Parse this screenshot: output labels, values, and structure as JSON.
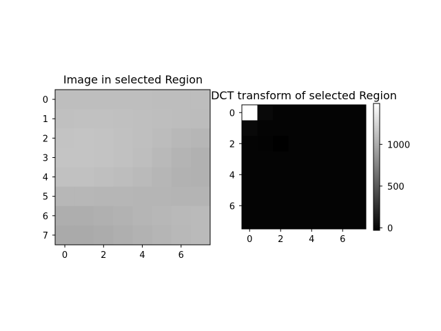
{
  "chart_data": [
    {
      "type": "heatmap",
      "title": "Image in selected Region",
      "colormap": "gray",
      "x_ticks": [
        0,
        2,
        4,
        6
      ],
      "y_ticks": [
        0,
        1,
        2,
        3,
        4,
        5,
        6,
        7
      ],
      "value_range": [
        0,
        255
      ],
      "values": [
        [
          190,
          190,
          190,
          190,
          190,
          189,
          189,
          189
        ],
        [
          192,
          193,
          193,
          192,
          191,
          190,
          189,
          188
        ],
        [
          195,
          196,
          195,
          193,
          191,
          188,
          184,
          182
        ],
        [
          196,
          196,
          195,
          193,
          190,
          185,
          180,
          177
        ],
        [
          193,
          193,
          191,
          189,
          186,
          182,
          178,
          177
        ],
        [
          183,
          183,
          182,
          182,
          181,
          181,
          180,
          180
        ],
        [
          174,
          174,
          176,
          178,
          181,
          183,
          185,
          186
        ],
        [
          170,
          170,
          172,
          175,
          178,
          181,
          184,
          186
        ]
      ]
    },
    {
      "type": "heatmap",
      "title": "DCT transform of selected Region",
      "colormap": "gray",
      "x_ticks": [
        0,
        2,
        4,
        6
      ],
      "y_ticks": [
        0,
        2,
        4,
        6
      ],
      "colorbar": {
        "ticks": [
          0,
          500,
          1000
        ],
        "range": [
          -30,
          1490
        ]
      },
      "values": [
        [
          1490,
          22,
          -4,
          -6,
          -7,
          -7,
          -7,
          -7
        ],
        [
          25,
          -8,
          -6,
          -5,
          -6,
          -6,
          -6,
          -6
        ],
        [
          -4,
          -12,
          -30,
          -8,
          -6,
          -6,
          -6,
          -6
        ],
        [
          -6,
          -7,
          -8,
          -6,
          -6,
          -6,
          -6,
          -6
        ],
        [
          -6,
          -6,
          -6,
          -6,
          -6,
          -6,
          -6,
          -6
        ],
        [
          -6,
          -6,
          -6,
          -6,
          -6,
          -6,
          -6,
          -6
        ],
        [
          -6,
          -6,
          -6,
          -6,
          -6,
          -6,
          -6,
          -6
        ],
        [
          -6,
          -6,
          -6,
          -6,
          -6,
          -6,
          -6,
          -6
        ]
      ]
    }
  ]
}
